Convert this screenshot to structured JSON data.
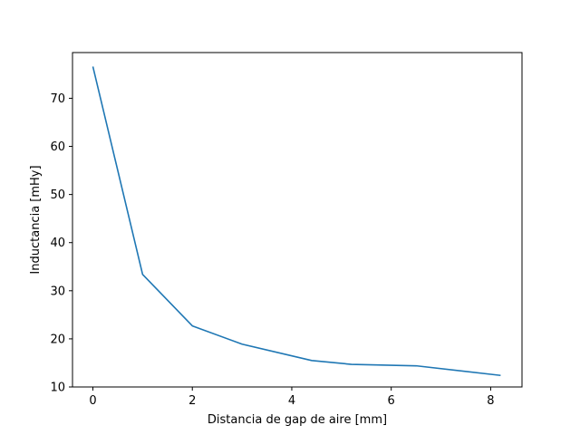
{
  "chart_data": {
    "type": "line",
    "title": "",
    "xlabel": "Distancia de gap de aire [mm]",
    "ylabel": "Inductancia [mHy]",
    "xlim": [
      -0.41,
      8.63
    ],
    "ylim": [
      10.0,
      79.5
    ],
    "grid": false,
    "xticks": [
      0,
      2,
      4,
      6,
      8
    ],
    "yticks": [
      10,
      20,
      30,
      40,
      50,
      60,
      70
    ],
    "series": [
      {
        "color": "#1f77b4",
        "x": [
          0,
          1,
          2,
          3,
          4.4,
          5.2,
          6.5,
          8.2
        ],
        "y": [
          76.6,
          33.4,
          22.7,
          18.9,
          15.5,
          14.7,
          14.4,
          12.4
        ]
      }
    ]
  }
}
